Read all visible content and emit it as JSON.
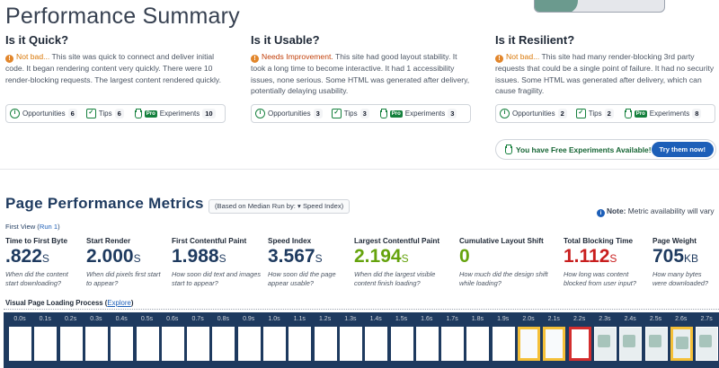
{
  "summary": {
    "title": "Performance Summary",
    "columns": [
      {
        "heading": "Is it Quick?",
        "status": "Not bad...",
        "text": "This site was quick to connect and deliver initial code. It began rendering content very quickly. There were 10 render-blocking requests. The largest content rendered quickly.",
        "opportunities_label": "Opportunities",
        "opportunities": "6",
        "tips_label": "Tips",
        "tips": "6",
        "pro_label": "Pro",
        "experiments_label": "Experiments",
        "experiments": "10"
      },
      {
        "heading": "Is it Usable?",
        "status": "Needs Improvement.",
        "text": "This site had good layout stability. It took a long time to become interactive. It had 1 accessibility issues, none serious. Some HTML was generated after delivery, potentially delaying usability.",
        "opportunities_label": "Opportunities",
        "opportunities": "3",
        "tips_label": "Tips",
        "tips": "3",
        "pro_label": "Pro",
        "experiments_label": "Experiments",
        "experiments": "3"
      },
      {
        "heading": "Is it Resilient?",
        "status": "Not bad...",
        "text": "This site had many render-blocking 3rd party requests that could be a single point of failure. It had no security issues. Some HTML was generated after delivery, which can cause fragility.",
        "opportunities_label": "Opportunities",
        "opportunities": "2",
        "tips_label": "Tips",
        "tips": "2",
        "pro_label": "Pro",
        "experiments_label": "Experiments",
        "experiments": "8"
      }
    ],
    "free_experiments": "You have Free Experiments Available!",
    "try_button": "Try them now!"
  },
  "metrics": {
    "title": "Page Performance Metrics",
    "median_prefix": "(Based on Median Run by:",
    "median_value": "▾ Speed Index)",
    "note_label": "Note:",
    "note_text": " Metric availability will vary",
    "first_view_label": "First View (",
    "run_link": "Run 1",
    "first_view_close": ")",
    "items": [
      {
        "label": "Time to First Byte",
        "value": ".822",
        "unit": "S",
        "question": "When did the content start downloading?",
        "status": "normal"
      },
      {
        "label": "Start Render",
        "value": "2.000",
        "unit": "S",
        "question": "When did pixels first start to appear?",
        "status": "normal"
      },
      {
        "label": "First Contentful Paint",
        "value": "1.988",
        "unit": "S",
        "question": "How soon did text and images start to appear?",
        "status": "normal"
      },
      {
        "label": "Speed Index",
        "value": "3.567",
        "unit": "S",
        "question": "How soon did the page appear usable?",
        "status": "normal"
      },
      {
        "label": "Largest Contentful Paint",
        "value": "2.194",
        "unit": "S",
        "question": "When did the largest visible content finish loading?",
        "status": "good"
      },
      {
        "label": "Cumulative Layout Shift",
        "value": "0",
        "unit": "",
        "question": "How much did the design shift while loading?",
        "status": "good"
      },
      {
        "label": "Total Blocking Time",
        "value": "1.112",
        "unit": "S",
        "question": "How long was content blocked from user input?",
        "status": "bad"
      },
      {
        "label": "Page Weight",
        "value": "705",
        "unit": "KB",
        "question": "How many bytes were downloaded?",
        "status": "normal"
      }
    ]
  },
  "filmstrip": {
    "title": "Visual Page Loading Process",
    "explore_open": " (",
    "explore_link": "Explore",
    "explore_close": ")",
    "times": [
      "0.0s",
      "0.1s",
      "0.2s",
      "0.3s",
      "0.4s",
      "0.5s",
      "0.6s",
      "0.7s",
      "0.8s",
      "0.9s",
      "1.0s",
      "1.1s",
      "1.2s",
      "1.3s",
      "1.4s",
      "1.5s",
      "1.6s",
      "1.7s",
      "1.8s",
      "1.9s",
      "2.0s",
      "2.1s",
      "2.2s",
      "2.3s",
      "2.4s",
      "2.5s",
      "2.6s",
      "2.7s"
    ],
    "frame_states": [
      "blank",
      "blank",
      "blank",
      "blank",
      "blank",
      "blank",
      "blank",
      "blank",
      "blank",
      "blank",
      "blank",
      "blank",
      "blank",
      "blank",
      "blank",
      "blank",
      "blank",
      "blank",
      "blank",
      "blank",
      "changed",
      "changed",
      "lcp",
      "img",
      "img",
      "img",
      "changed-img",
      "img"
    ]
  }
}
